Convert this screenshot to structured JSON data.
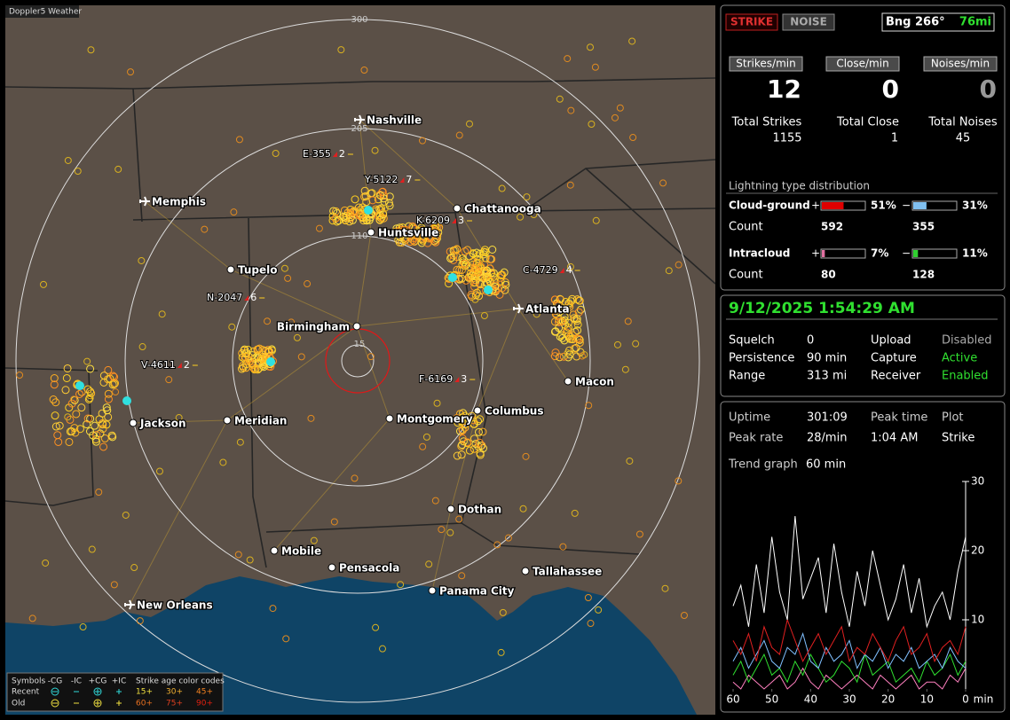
{
  "map": {
    "title": "Doppler5 Weather",
    "ring_labels": [
      300,
      205,
      110,
      15
    ],
    "cities": [
      {
        "name": "Nashville",
        "airport": true
      },
      {
        "name": "Memphis",
        "airport": true
      },
      {
        "name": "Chattanooga",
        "airport": false
      },
      {
        "name": "Huntsville",
        "airport": false
      },
      {
        "name": "Tupelo",
        "airport": false
      },
      {
        "name": "Birmingham",
        "airport": false
      },
      {
        "name": "Atlanta",
        "airport": true
      },
      {
        "name": "Macon",
        "airport": false
      },
      {
        "name": "Columbus",
        "airport": false
      },
      {
        "name": "Montgomery",
        "airport": false
      },
      {
        "name": "Meridian",
        "airport": false
      },
      {
        "name": "Jackson",
        "airport": false
      },
      {
        "name": "Dothan",
        "airport": false
      },
      {
        "name": "Mobile",
        "airport": false
      },
      {
        "name": "Pensacola",
        "airport": false
      },
      {
        "name": "Tallahassee",
        "airport": false
      },
      {
        "name": "Panama City",
        "airport": false
      },
      {
        "name": "New Orleans",
        "airport": true
      }
    ],
    "storms": [
      {
        "id": "E-355",
        "count": 2
      },
      {
        "id": "Y-5122",
        "count": 7
      },
      {
        "id": "K-6209",
        "count": 3
      },
      {
        "id": "C-4729",
        "count": 4
      },
      {
        "id": "N-2047",
        "count": 6
      },
      {
        "id": "V-4611",
        "count": 2
      },
      {
        "id": "F-6169",
        "count": 3
      }
    ],
    "legend": {
      "symbols_label": "Symbols",
      "types": [
        "-CG",
        "-IC",
        "+CG",
        "+IC"
      ],
      "age_label": "Strike age color codes",
      "rows": [
        "Recent",
        "Old"
      ],
      "recent_ages": [
        "15+",
        "30+",
        "45+"
      ],
      "old_ages": [
        "60+",
        "75+",
        "90+"
      ]
    }
  },
  "panel": {
    "strike_button": "STRIKE",
    "noise_button": "NOISE",
    "bearing": "Bng 266°",
    "distance": "76mi",
    "rates": [
      {
        "label": "Strikes/min",
        "value": 12,
        "total_label": "Total Strikes",
        "total": 1155
      },
      {
        "label": "Close/min",
        "value": 0,
        "total_label": "Total Close",
        "total": 1
      },
      {
        "label": "Noises/min",
        "value": 0,
        "total_label": "Total Noises",
        "total": 45
      }
    ],
    "distribution": {
      "title": "Lightning type distribution",
      "rows": [
        {
          "name": "Cloud-ground",
          "plus_sign": "+",
          "plus": {
            "value": 51,
            "label": "51%"
          },
          "minus_sign": "−",
          "minus": {
            "value": 31,
            "label": "31%"
          },
          "count_label": "Count",
          "plus_count": 592,
          "minus_count": 355
        },
        {
          "name": "Intracloud",
          "plus_sign": "+",
          "plus": {
            "value": 7,
            "label": "7%"
          },
          "minus_sign": "−",
          "minus": {
            "value": 11,
            "label": "11%"
          },
          "count_label": "Count",
          "plus_count": 80,
          "minus_count": 128
        }
      ]
    },
    "datetime": "9/12/2025 1:54:29 AM",
    "status": [
      {
        "label": "Squelch",
        "value": 0
      },
      {
        "label": "Persistence",
        "value": "90 min"
      },
      {
        "label": "Range",
        "value": "313 mi"
      },
      {
        "label": "Upload",
        "value": "Disabled"
      },
      {
        "label": "Capture",
        "value": "Active"
      },
      {
        "label": "Receiver",
        "value": "Enabled"
      }
    ],
    "stats": [
      {
        "label": "Uptime",
        "value": "301:09"
      },
      {
        "label": "Peak rate",
        "value": "28/min"
      },
      {
        "label": "Peak time",
        "value": "1:04 AM"
      },
      {
        "label": "Plot",
        "value": "Strike"
      }
    ],
    "trend_label": "Trend graph",
    "trend_span": "60 min"
  },
  "chart_data": {
    "type": "line",
    "xlabel": "min",
    "xlim": [
      60,
      0
    ],
    "ylim": [
      0,
      30
    ],
    "xticks": [
      60,
      50,
      40,
      30,
      20,
      10,
      0
    ],
    "yticks": [
      30,
      20,
      10
    ],
    "x": [
      60,
      58,
      56,
      54,
      52,
      50,
      48,
      46,
      44,
      42,
      40,
      38,
      36,
      34,
      32,
      30,
      28,
      26,
      24,
      22,
      20,
      18,
      16,
      14,
      12,
      10,
      8,
      6,
      4,
      2,
      0
    ],
    "series": [
      {
        "color": "#ffffff",
        "values": [
          12,
          15,
          9,
          18,
          11,
          22,
          14,
          10,
          25,
          13,
          16,
          19,
          11,
          21,
          14,
          9,
          17,
          12,
          20,
          15,
          10,
          13,
          18,
          11,
          16,
          9,
          12,
          14,
          10,
          17,
          22
        ]
      },
      {
        "color": "#e02020",
        "values": [
          7,
          5,
          8,
          4,
          9,
          6,
          5,
          10,
          7,
          4,
          6,
          8,
          5,
          7,
          9,
          4,
          6,
          5,
          8,
          6,
          4,
          7,
          9,
          5,
          6,
          8,
          4,
          6,
          7,
          5,
          9
        ]
      },
      {
        "color": "#80c0ff",
        "values": [
          4,
          6,
          3,
          5,
          7,
          4,
          3,
          6,
          5,
          8,
          4,
          3,
          6,
          4,
          5,
          7,
          3,
          5,
          4,
          6,
          3,
          5,
          4,
          6,
          3,
          4,
          5,
          3,
          6,
          4,
          3
        ]
      },
      {
        "color": "#30e030",
        "values": [
          2,
          4,
          1,
          3,
          5,
          2,
          3,
          1,
          4,
          2,
          5,
          3,
          1,
          2,
          4,
          3,
          1,
          5,
          2,
          3,
          4,
          1,
          2,
          3,
          1,
          4,
          2,
          3,
          5,
          2,
          4
        ]
      },
      {
        "color": "#ff80c0",
        "values": [
          1,
          0,
          2,
          1,
          0,
          1,
          2,
          0,
          1,
          3,
          1,
          0,
          2,
          1,
          0,
          1,
          2,
          1,
          0,
          2,
          1,
          0,
          1,
          2,
          0,
          1,
          1,
          0,
          2,
          1,
          3
        ]
      }
    ]
  }
}
